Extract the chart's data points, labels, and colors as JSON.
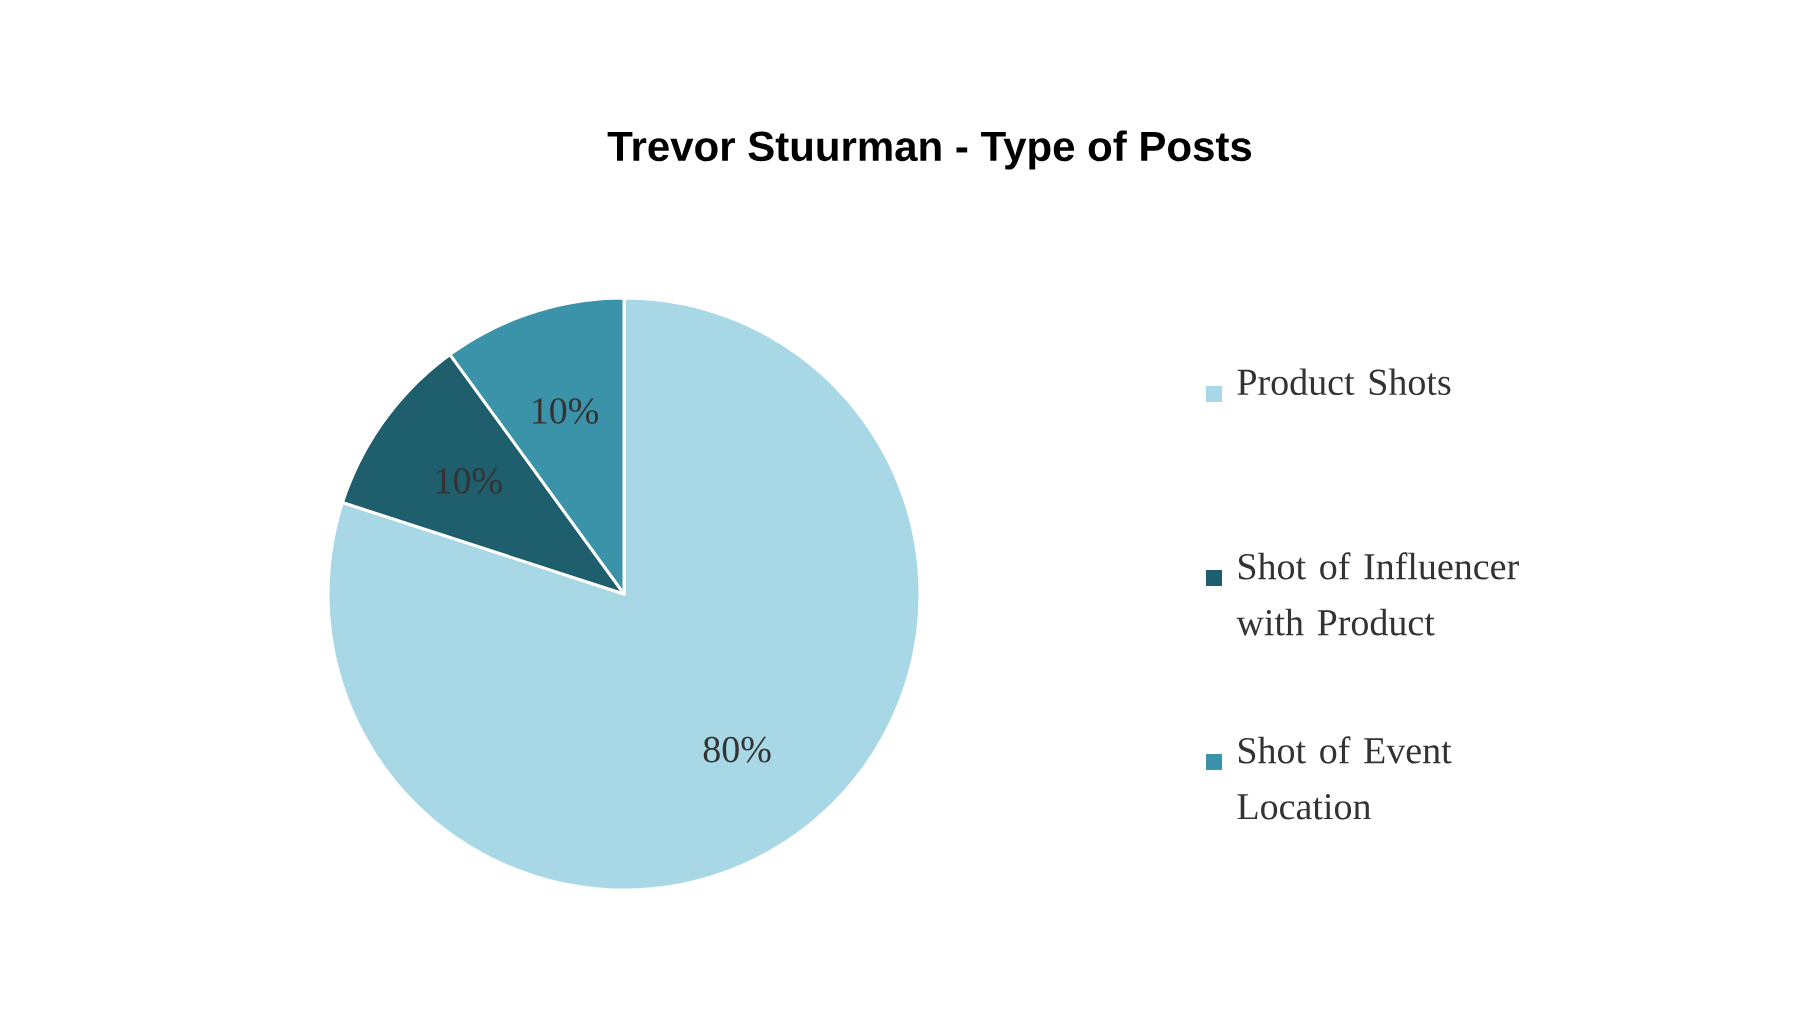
{
  "chart_data": {
    "type": "pie",
    "title": "Trevor Stuurman - Type of Posts",
    "categories": [
      "Product Shots",
      "Shot of Influencer with Product",
      "Shot of Event Location"
    ],
    "values": [
      80,
      10,
      10
    ],
    "value_labels": [
      "80%",
      "10%",
      "10%"
    ],
    "colors": [
      "#a8d8e6",
      "#1f5e6d",
      "#3a93a8"
    ],
    "legend": "right"
  }
}
